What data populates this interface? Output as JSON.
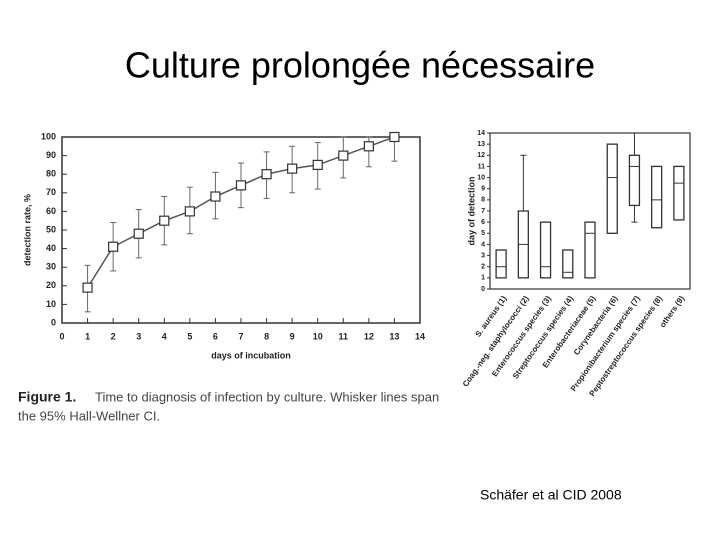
{
  "slide": {
    "title": "Culture prolongée nécessaire",
    "caption_label": "Figure 1.",
    "caption_lines": [
      "Time to diagnosis of infection by culture. Whisker lines span",
      "the 95% Hall-Wellner CI."
    ],
    "citation": "Schäfer et al CID 2008"
  },
  "chart_data": [
    {
      "type": "line-errorbar",
      "xlabel": "days of incubation",
      "ylabel": "detection rate, %",
      "x": [
        1,
        2,
        3,
        4,
        5,
        6,
        7,
        8,
        9,
        10,
        11,
        12,
        13
      ],
      "values": [
        19,
        41,
        48,
        55,
        60,
        68,
        74,
        80,
        83,
        85,
        90,
        95,
        100
      ],
      "lower": [
        6,
        28,
        35,
        42,
        48,
        56,
        62,
        67,
        70,
        72,
        78,
        84,
        87
      ],
      "upper": [
        31,
        54,
        61,
        68,
        73,
        81,
        86,
        92,
        95,
        97,
        100,
        100,
        100
      ],
      "color": "#555555",
      "xlim": [
        0,
        14
      ],
      "xticks": [
        0,
        1,
        2,
        3,
        4,
        5,
        6,
        7,
        8,
        9,
        10,
        11,
        12,
        13,
        14
      ],
      "ylim": [
        0,
        100
      ],
      "yticks": [
        0,
        10,
        20,
        30,
        40,
        50,
        60,
        70,
        80,
        90,
        100
      ]
    },
    {
      "type": "box",
      "ylabel": "day of detection",
      "categories": [
        "S. aureus (1)",
        "Coag.-neg. staphylococci (2)",
        "Enterococcus species (3)",
        "Streptococcus species (4)",
        "Enterobacteriaceae (5)",
        "Corynebacteria (6)",
        "Propionibacterium species (7)",
        "Peptostreptococcus species (8)",
        "others (9)"
      ],
      "min": [
        1,
        1,
        1,
        1,
        1,
        5,
        6,
        5.5,
        6.2
      ],
      "q1": [
        1,
        1,
        1,
        1,
        1,
        5,
        7.5,
        5.5,
        6.2
      ],
      "median": [
        2,
        4,
        2,
        1.5,
        5,
        10,
        11,
        8,
        9.5
      ],
      "q3": [
        3.5,
        7,
        6,
        3.5,
        6,
        13,
        12,
        11,
        11
      ],
      "max": [
        3.5,
        12,
        6,
        3.5,
        6,
        13,
        14,
        11,
        11
      ],
      "color": "#333333",
      "ylim": [
        0,
        14
      ],
      "yticks": [
        0,
        1,
        2,
        3,
        4,
        5,
        6,
        7,
        8,
        9,
        10,
        11,
        12,
        13,
        14
      ]
    }
  ]
}
